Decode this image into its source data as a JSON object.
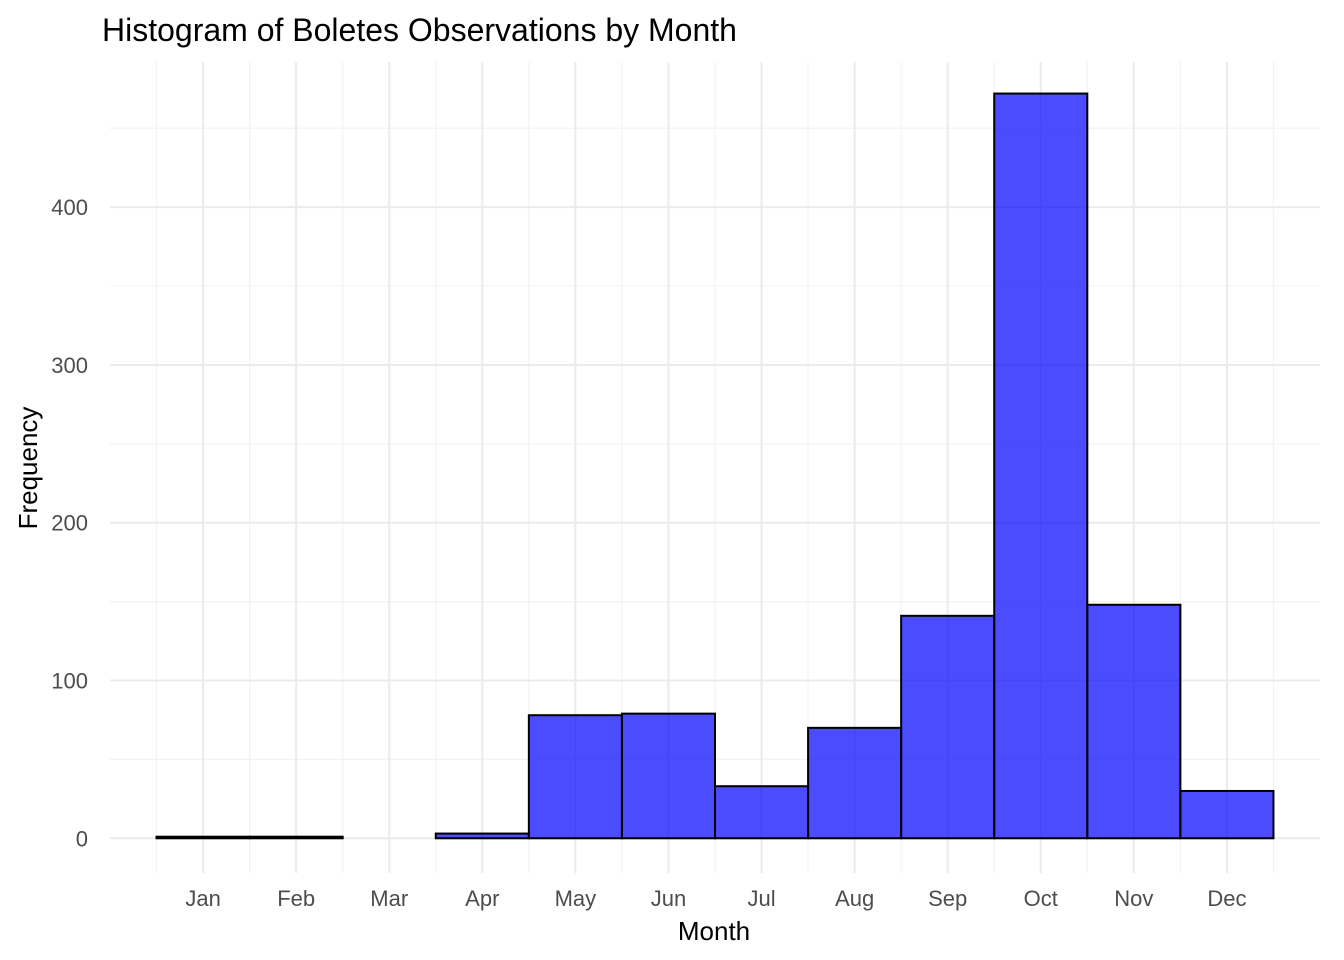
{
  "chart_data": {
    "type": "bar",
    "title": "Histogram of Boletes Observations by Month",
    "xlabel": "Month",
    "ylabel": "Frequency",
    "categories": [
      "Jan",
      "Feb",
      "Mar",
      "Apr",
      "May",
      "Jun",
      "Jul",
      "Aug",
      "Sep",
      "Oct",
      "Nov",
      "Dec"
    ],
    "values": [
      1,
      1,
      0,
      3,
      78,
      79,
      33,
      70,
      141,
      472,
      148,
      30
    ],
    "ylim": [
      -22,
      492
    ],
    "y_ticks": [
      0,
      100,
      200,
      300,
      400
    ],
    "bar_color": "#0000ff",
    "bar_opacity": 0.7,
    "bar_outline": "#000000",
    "grid": true,
    "legend": "none"
  }
}
